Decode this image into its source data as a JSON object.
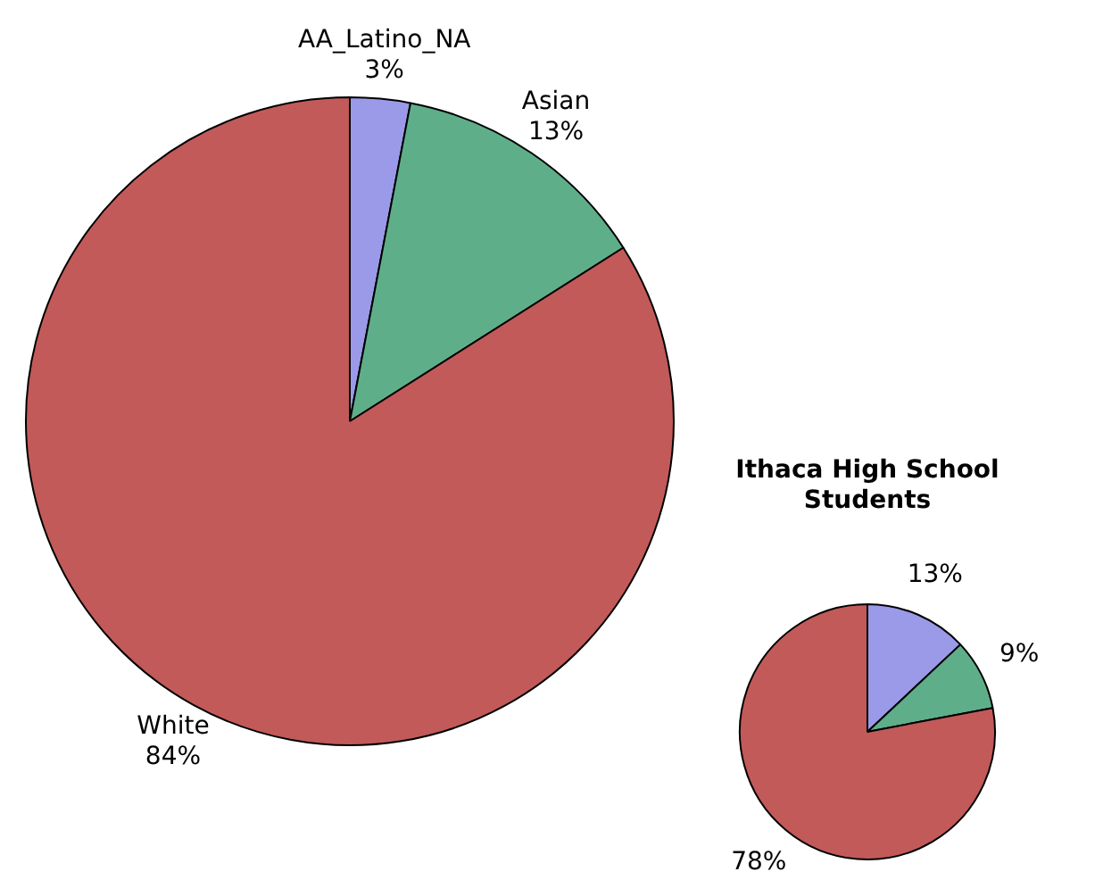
{
  "chart_data": [
    {
      "type": "pie",
      "categories": [
        "AA_Latino_NA",
        "Asian",
        "White"
      ],
      "values": [
        3,
        13,
        84
      ],
      "value_labels": [
        "3%",
        "13%",
        "84%"
      ],
      "colors": [
        "#9a9ae8",
        "#5fae8a",
        "#c25a5a"
      ],
      "legend": false
    },
    {
      "type": "pie",
      "title": "Ithaca High School Students",
      "categories": [
        null,
        null,
        null
      ],
      "values": [
        13,
        9,
        78
      ],
      "value_labels": [
        "13%",
        "9%",
        "78%"
      ],
      "colors": [
        "#9a9ae8",
        "#5fae8a",
        "#c25a5a"
      ],
      "legend": false
    }
  ]
}
